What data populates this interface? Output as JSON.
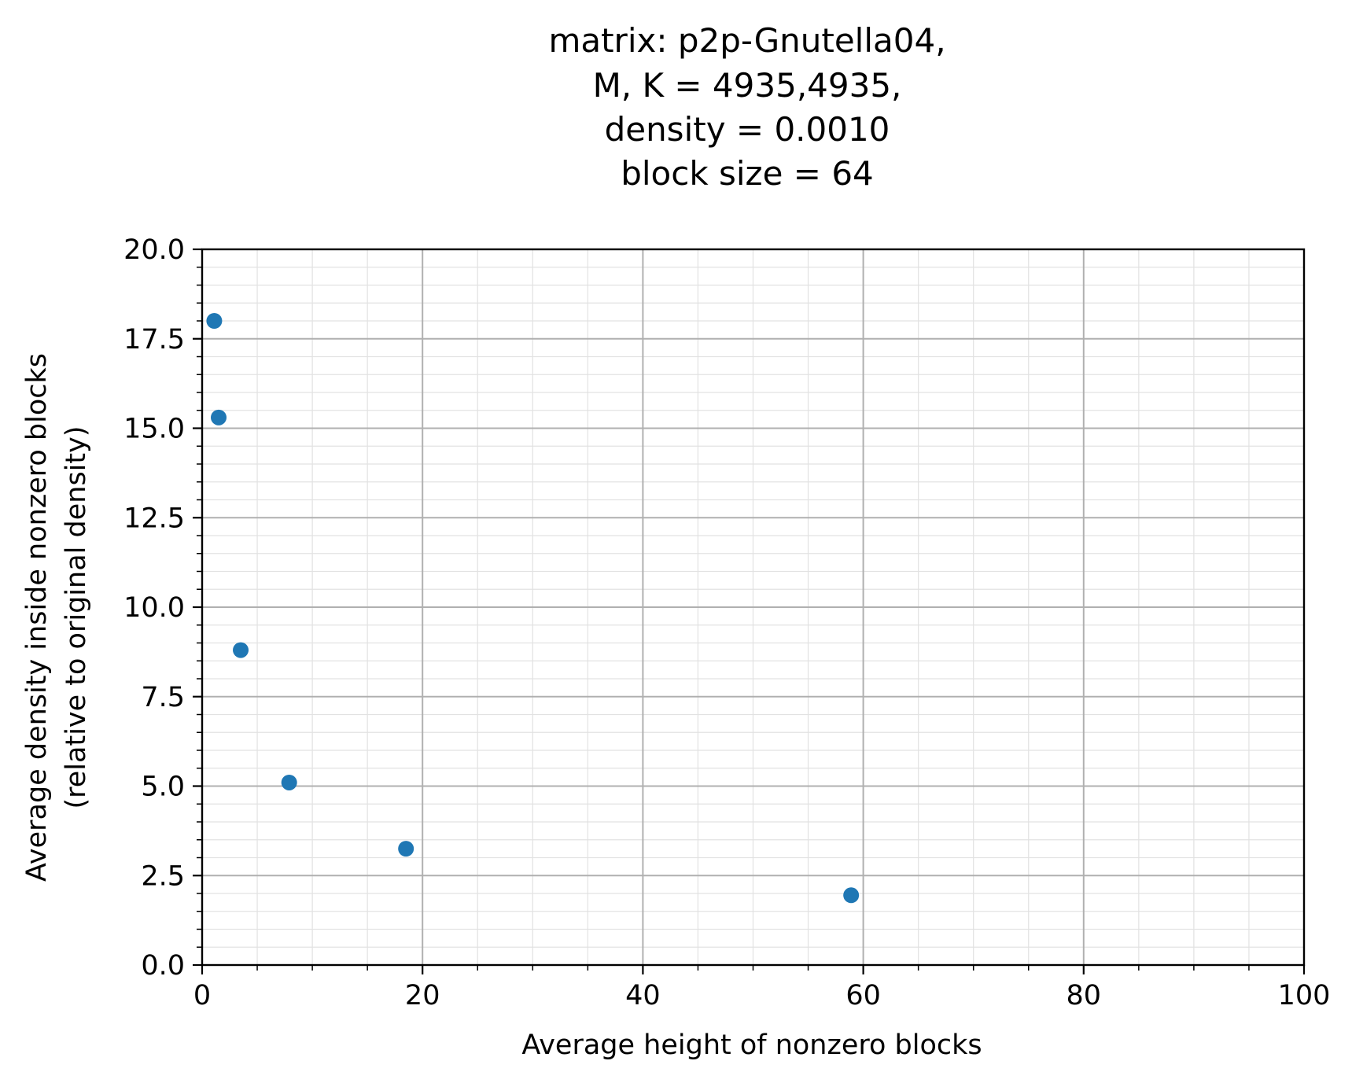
{
  "chart_data": {
    "type": "scatter",
    "title_lines": [
      "matrix: p2p-Gnutella04,",
      "M, K = 4935,4935,",
      "density = 0.0010",
      "block size = 64"
    ],
    "xlabel": "Average height of nonzero blocks",
    "ylabel_lines": [
      "Average density inside nonzero blocks",
      "(relative to original density)"
    ],
    "xlim": [
      0,
      100
    ],
    "ylim": [
      0,
      20
    ],
    "xticks": [
      "0",
      "20",
      "40",
      "60",
      "80",
      "100"
    ],
    "yticks": [
      "0.0",
      "2.5",
      "5.0",
      "7.5",
      "10.0",
      "12.5",
      "15.0",
      "17.5",
      "20.0"
    ],
    "grid": true,
    "series": [
      {
        "color": "#1f77b4",
        "points": [
          {
            "x": 1.1,
            "y": 18.0
          },
          {
            "x": 1.5,
            "y": 15.3
          },
          {
            "x": 3.5,
            "y": 8.8
          },
          {
            "x": 7.9,
            "y": 5.1
          },
          {
            "x": 18.5,
            "y": 3.25
          },
          {
            "x": 58.9,
            "y": 1.95
          }
        ]
      }
    ]
  }
}
